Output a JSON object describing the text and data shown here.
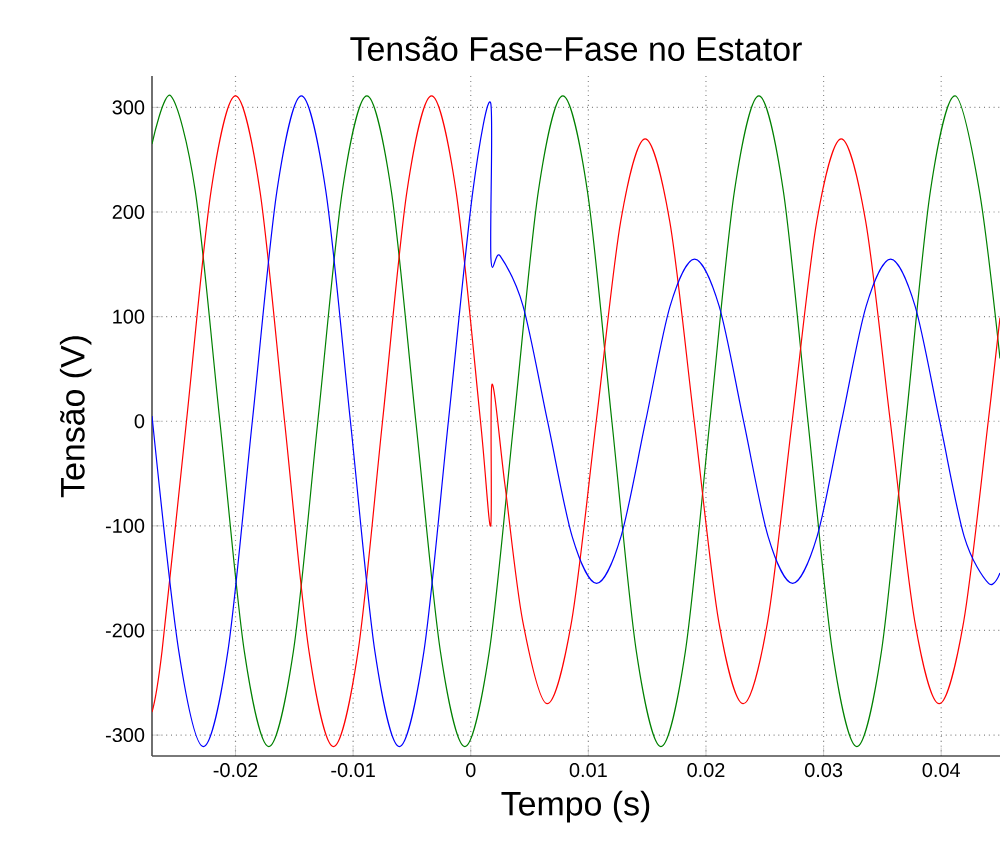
{
  "chart_data": {
    "type": "line",
    "title": "Tensão Fase−Fase no Estator",
    "xlabel": "Tempo (s)",
    "ylabel": "Tensão (V)",
    "xlim": [
      -0.0271,
      0.045
    ],
    "ylim": [
      -320,
      330
    ],
    "xticks": [
      -0.02,
      -0.01,
      0,
      0.01,
      0.02,
      0.03,
      0.04
    ],
    "yticks": [
      -300,
      -200,
      -100,
      0,
      100,
      200,
      300
    ],
    "grid": true,
    "marker": "none",
    "line_style": "solid",
    "series": [
      {
        "color": "#008000",
        "x": [
          -0.0271,
          -0.0255,
          -0.02342,
          -0.02133,
          -0.01925,
          -0.01717,
          -0.01508,
          -0.013,
          -0.01092,
          -0.00883,
          -0.00675,
          -0.00467,
          -0.00258,
          -0.0005,
          0.00158,
          0.00367,
          0.00575,
          0.00783,
          0.00992,
          0.012,
          0.01408,
          0.01617,
          0.01825,
          0.02033,
          0.02242,
          0.0245,
          0.02658,
          0.02867,
          0.03075,
          0.03283,
          0.03492,
          0.037,
          0.03908,
          0.04117,
          0.04325,
          0.045
        ],
        "values": [
          265,
          311,
          220,
          0,
          -220,
          -311,
          -220,
          0,
          220,
          311,
          220,
          0,
          -220,
          -311,
          -220,
          0,
          220,
          311,
          220,
          0,
          -220,
          -311,
          -220,
          0,
          220,
          311,
          220,
          0,
          -220,
          -311,
          -220,
          0,
          220,
          311,
          220,
          60
        ]
      },
      {
        "color": "#ff0000",
        "x": [
          -0.0271,
          -0.02625,
          -0.02417,
          -0.02208,
          -0.02,
          -0.01792,
          -0.01583,
          -0.01375,
          -0.01167,
          -0.00958,
          -0.0075,
          -0.00542,
          -0.00333,
          -0.00125,
          0.00083,
          0.0017,
          0.0018,
          0.0029,
          0.00442,
          0.0065,
          0.00858,
          0.01067,
          0.01275,
          0.01483,
          0.01692,
          0.019,
          0.02108,
          0.02317,
          0.02525,
          0.02733,
          0.02942,
          0.0315,
          0.03358,
          0.03567,
          0.03775,
          0.03983,
          0.04192,
          0.044,
          0.045
        ],
        "values": [
          -278,
          -220,
          0,
          220,
          311,
          220,
          0,
          -220,
          -311,
          -220,
          0,
          220,
          311,
          220,
          0,
          -100,
          35,
          -60,
          -191,
          -270,
          -191,
          0,
          191,
          270,
          191,
          0,
          -191,
          -270,
          -191,
          0,
          191,
          270,
          191,
          0,
          -191,
          -270,
          -191,
          0,
          99
        ]
      },
      {
        "color": "#0000ff",
        "x": [
          -0.0271,
          -0.02482,
          -0.02273,
          -0.02065,
          -0.01857,
          -0.01648,
          -0.0144,
          -0.01232,
          -0.01023,
          -0.00815,
          -0.00607,
          -0.00398,
          -0.0019,
          0.00018,
          0.0017,
          0.00172,
          0.0025,
          0.00445,
          0.00653,
          0.00862,
          0.0107,
          0.01278,
          0.01487,
          0.01695,
          0.01903,
          0.02112,
          0.0232,
          0.02528,
          0.02737,
          0.02945,
          0.03153,
          0.03362,
          0.0357,
          0.03778,
          0.03987,
          0.04195,
          0.04403,
          0.045
        ],
        "values": [
          5,
          -220,
          -311,
          -220,
          0,
          220,
          311,
          220,
          0,
          -220,
          -311,
          -220,
          0,
          220,
          304,
          155,
          158,
          110,
          0,
          -110,
          -155,
          -110,
          0,
          110,
          155,
          110,
          0,
          -110,
          -155,
          -110,
          0,
          110,
          155,
          110,
          0,
          -110,
          -155,
          -145
        ]
      }
    ]
  }
}
